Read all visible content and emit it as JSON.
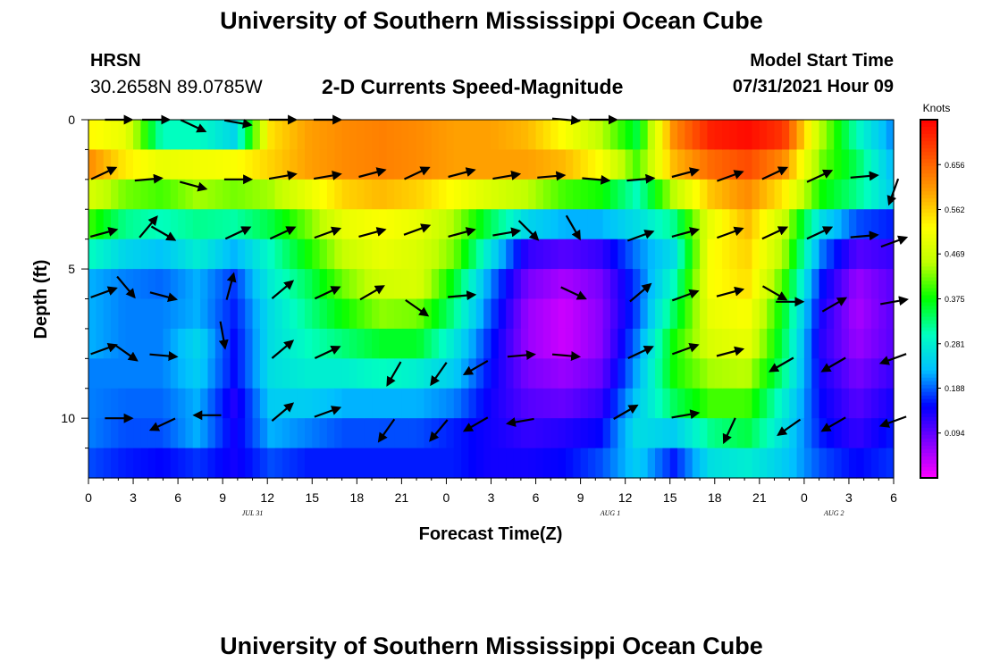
{
  "header": {
    "title_top": "University of Southern Mississippi Ocean Cube",
    "title_bottom": "University of Southern Mississippi Ocean Cube",
    "station_name": "HRSN",
    "station_coords": "30.2658N  89.0785W",
    "chart_title": "2-D Currents Speed-Magnitude",
    "model_start_label": "Model Start Time",
    "model_start_value": "07/31/2021 Hour 09"
  },
  "colors": {
    "background": "#ffffff",
    "text": "#000000",
    "arrow": "#000000"
  },
  "chart_data": {
    "type": "heatmap",
    "title": "2-D Currents Speed-Magnitude",
    "xlabel": "Forecast Time(Z)",
    "ylabel": "Depth (ft)",
    "x_ticks": [
      "0",
      "3",
      "6",
      "9",
      "12",
      "15",
      "18",
      "21",
      "0",
      "3",
      "6",
      "9",
      "12",
      "15",
      "18",
      "21",
      "0",
      "3",
      "6"
    ],
    "x_range_hours": [
      0,
      54
    ],
    "date_labels": [
      {
        "hour": 11,
        "text": "JUL 31"
      },
      {
        "hour": 35,
        "text": "AUG 1"
      },
      {
        "hour": 50,
        "text": "AUG 2"
      }
    ],
    "y_ticks": [
      "0",
      "5",
      "10"
    ],
    "y_tick_values": [
      0,
      5,
      10
    ],
    "y_range_ft": [
      0,
      12
    ],
    "colorbar": {
      "unit": "Knots",
      "range": [
        0,
        0.75
      ],
      "ticks": [
        "0.656",
        "0.562",
        "0.469",
        "0.375",
        "0.281",
        "0.188",
        "0.094"
      ],
      "tick_values": [
        0.656,
        0.562,
        0.469,
        0.375,
        0.281,
        0.188,
        0.094
      ],
      "stops": [
        "#ff00ff",
        "#8000ff",
        "#0000ff",
        "#00c0ff",
        "#00ffc0",
        "#00ff00",
        "#c0ff00",
        "#ffff00",
        "#ffa000",
        "#ff5000",
        "#ff0000"
      ]
    },
    "depth_rows": [
      0.5,
      1.5,
      2.5,
      3.5,
      4.5,
      5.5,
      6.5,
      7.5,
      8.5,
      9.5,
      10.5,
      11.5
    ],
    "speed_profiles": [
      [
        0.53,
        0.62,
        0.48,
        0.4,
        0.3,
        0.22,
        0.22,
        0.22,
        0.2,
        0.2,
        0.2,
        0.18
      ],
      [
        0.5,
        0.54,
        0.42,
        0.32,
        0.25,
        0.2,
        0.2,
        0.2,
        0.2,
        0.19,
        0.18,
        0.16
      ],
      [
        0.3,
        0.5,
        0.4,
        0.3,
        0.23,
        0.19,
        0.2,
        0.2,
        0.2,
        0.19,
        0.18,
        0.15
      ],
      [
        0.3,
        0.51,
        0.44,
        0.32,
        0.28,
        0.22,
        0.22,
        0.25,
        0.24,
        0.22,
        0.22,
        0.17
      ],
      [
        0.25,
        0.52,
        0.42,
        0.31,
        0.22,
        0.17,
        0.16,
        0.15,
        0.15,
        0.13,
        0.14,
        0.14
      ],
      [
        0.55,
        0.56,
        0.44,
        0.35,
        0.3,
        0.28,
        0.26,
        0.26,
        0.26,
        0.24,
        0.22,
        0.18
      ],
      [
        0.6,
        0.6,
        0.5,
        0.42,
        0.38,
        0.34,
        0.32,
        0.3,
        0.28,
        0.24,
        0.2,
        0.16
      ],
      [
        0.62,
        0.62,
        0.56,
        0.5,
        0.46,
        0.42,
        0.38,
        0.33,
        0.28,
        0.22,
        0.18,
        0.16
      ],
      [
        0.63,
        0.63,
        0.58,
        0.52,
        0.5,
        0.47,
        0.43,
        0.36,
        0.3,
        0.22,
        0.18,
        0.16
      ],
      [
        0.62,
        0.62,
        0.56,
        0.5,
        0.48,
        0.48,
        0.42,
        0.36,
        0.28,
        0.22,
        0.18,
        0.16
      ],
      [
        0.6,
        0.6,
        0.52,
        0.44,
        0.42,
        0.36,
        0.32,
        0.27,
        0.24,
        0.2,
        0.16,
        0.16
      ],
      [
        0.6,
        0.6,
        0.48,
        0.34,
        0.26,
        0.2,
        0.18,
        0.16,
        0.15,
        0.14,
        0.14,
        0.14
      ],
      [
        0.58,
        0.6,
        0.45,
        0.25,
        0.12,
        0.08,
        0.06,
        0.06,
        0.08,
        0.1,
        0.12,
        0.14
      ],
      [
        0.52,
        0.58,
        0.4,
        0.22,
        0.1,
        0.05,
        0.03,
        0.03,
        0.06,
        0.09,
        0.13,
        0.15
      ],
      [
        0.45,
        0.52,
        0.38,
        0.22,
        0.12,
        0.08,
        0.07,
        0.07,
        0.09,
        0.12,
        0.15,
        0.18
      ],
      [
        0.35,
        0.4,
        0.3,
        0.26,
        0.2,
        0.18,
        0.18,
        0.2,
        0.22,
        0.24,
        0.26,
        0.24
      ],
      [
        0.62,
        0.58,
        0.45,
        0.32,
        0.26,
        0.3,
        0.34,
        0.38,
        0.38,
        0.34,
        0.24,
        0.16
      ],
      [
        0.72,
        0.65,
        0.57,
        0.5,
        0.52,
        0.52,
        0.5,
        0.48,
        0.44,
        0.4,
        0.32,
        0.26
      ],
      [
        0.74,
        0.68,
        0.62,
        0.58,
        0.56,
        0.55,
        0.52,
        0.5,
        0.45,
        0.4,
        0.35,
        0.28
      ],
      [
        0.7,
        0.62,
        0.54,
        0.46,
        0.44,
        0.4,
        0.36,
        0.34,
        0.32,
        0.28,
        0.26,
        0.24
      ],
      [
        0.45,
        0.42,
        0.38,
        0.26,
        0.2,
        0.16,
        0.14,
        0.13,
        0.14,
        0.15,
        0.16,
        0.18
      ],
      [
        0.3,
        0.34,
        0.32,
        0.18,
        0.1,
        0.06,
        0.05,
        0.06,
        0.08,
        0.1,
        0.12,
        0.15
      ],
      [
        0.2,
        0.22,
        0.24,
        0.16,
        0.12,
        0.1,
        0.1,
        0.1,
        0.12,
        0.14,
        0.16,
        0.17
      ]
    ],
    "arrows": [
      {
        "hour": 2.0,
        "depth": 0.0,
        "angle": 0
      },
      {
        "hour": 4.5,
        "depth": 0.0,
        "angle": 0
      },
      {
        "hour": 7.0,
        "depth": 0.2,
        "angle": 25
      },
      {
        "hour": 10.0,
        "depth": 0.1,
        "angle": 10
      },
      {
        "hour": 13.0,
        "depth": 0.0,
        "angle": 0
      },
      {
        "hour": 16.0,
        "depth": 0.0,
        "angle": 0
      },
      {
        "hour": 32.0,
        "depth": 0.0,
        "angle": 5
      },
      {
        "hour": 34.5,
        "depth": 0.0,
        "angle": 0
      },
      {
        "hour": 1.0,
        "depth": 1.8,
        "angle": -25
      },
      {
        "hour": 4.0,
        "depth": 2.0,
        "angle": -5
      },
      {
        "hour": 7.0,
        "depth": 2.2,
        "angle": 15
      },
      {
        "hour": 10.0,
        "depth": 2.0,
        "angle": 0
      },
      {
        "hour": 13.0,
        "depth": 1.9,
        "angle": -10
      },
      {
        "hour": 16.0,
        "depth": 1.9,
        "angle": -10
      },
      {
        "hour": 19.0,
        "depth": 1.8,
        "angle": -15
      },
      {
        "hour": 22.0,
        "depth": 1.8,
        "angle": -25
      },
      {
        "hour": 25.0,
        "depth": 1.8,
        "angle": -15
      },
      {
        "hour": 28.0,
        "depth": 1.9,
        "angle": -10
      },
      {
        "hour": 31.0,
        "depth": 1.9,
        "angle": -5
      },
      {
        "hour": 34.0,
        "depth": 2.0,
        "angle": 5
      },
      {
        "hour": 37.0,
        "depth": 2.0,
        "angle": -5
      },
      {
        "hour": 40.0,
        "depth": 1.8,
        "angle": -15
      },
      {
        "hour": 43.0,
        "depth": 1.9,
        "angle": -20
      },
      {
        "hour": 46.0,
        "depth": 1.8,
        "angle": -25
      },
      {
        "hour": 49.0,
        "depth": 1.9,
        "angle": -25
      },
      {
        "hour": 52.0,
        "depth": 1.9,
        "angle": -5
      },
      {
        "hour": 54.0,
        "depth": 2.4,
        "angle": 110
      },
      {
        "hour": 1.0,
        "depth": 3.8,
        "angle": -15
      },
      {
        "hour": 4.0,
        "depth": 3.6,
        "angle": -50
      },
      {
        "hour": 5.0,
        "depth": 3.8,
        "angle": 30
      },
      {
        "hour": 10.0,
        "depth": 3.8,
        "angle": -25
      },
      {
        "hour": 13.0,
        "depth": 3.8,
        "angle": -25
      },
      {
        "hour": 16.0,
        "depth": 3.8,
        "angle": -20
      },
      {
        "hour": 19.0,
        "depth": 3.8,
        "angle": -15
      },
      {
        "hour": 22.0,
        "depth": 3.7,
        "angle": -20
      },
      {
        "hour": 25.0,
        "depth": 3.8,
        "angle": -15
      },
      {
        "hour": 28.0,
        "depth": 3.8,
        "angle": -10
      },
      {
        "hour": 29.5,
        "depth": 3.7,
        "angle": 45
      },
      {
        "hour": 32.5,
        "depth": 3.6,
        "angle": 60
      },
      {
        "hour": 37.0,
        "depth": 3.9,
        "angle": -20
      },
      {
        "hour": 40.0,
        "depth": 3.8,
        "angle": -15
      },
      {
        "hour": 43.0,
        "depth": 3.8,
        "angle": -20
      },
      {
        "hour": 46.0,
        "depth": 3.8,
        "angle": -25
      },
      {
        "hour": 49.0,
        "depth": 3.8,
        "angle": -25
      },
      {
        "hour": 52.0,
        "depth": 3.9,
        "angle": -5
      },
      {
        "hour": 54.0,
        "depth": 4.1,
        "angle": -20
      },
      {
        "hour": 1.0,
        "depth": 5.8,
        "angle": -20
      },
      {
        "hour": 2.5,
        "depth": 5.6,
        "angle": 50
      },
      {
        "hour": 5.0,
        "depth": 5.9,
        "angle": 15
      },
      {
        "hour": 9.5,
        "depth": 5.6,
        "angle": -75
      },
      {
        "hour": 13.0,
        "depth": 5.7,
        "angle": -40
      },
      {
        "hour": 16.0,
        "depth": 5.8,
        "angle": -25
      },
      {
        "hour": 19.0,
        "depth": 5.8,
        "angle": -30
      },
      {
        "hour": 22.0,
        "depth": 6.3,
        "angle": 35
      },
      {
        "hour": 25.0,
        "depth": 5.9,
        "angle": -5
      },
      {
        "hour": 32.5,
        "depth": 5.8,
        "angle": 25
      },
      {
        "hour": 37.0,
        "depth": 5.8,
        "angle": -40
      },
      {
        "hour": 40.0,
        "depth": 5.9,
        "angle": -20
      },
      {
        "hour": 43.0,
        "depth": 5.8,
        "angle": -15
      },
      {
        "hour": 46.0,
        "depth": 5.8,
        "angle": 30
      },
      {
        "hour": 47.0,
        "depth": 6.1,
        "angle": 0
      },
      {
        "hour": 50.0,
        "depth": 6.2,
        "angle": -30
      },
      {
        "hour": 54.0,
        "depth": 6.1,
        "angle": -10
      },
      {
        "hour": 1.0,
        "depth": 7.7,
        "angle": -20
      },
      {
        "hour": 2.5,
        "depth": 7.8,
        "angle": 35
      },
      {
        "hour": 5.0,
        "depth": 7.9,
        "angle": 5
      },
      {
        "hour": 9.0,
        "depth": 7.2,
        "angle": 80
      },
      {
        "hour": 13.0,
        "depth": 7.7,
        "angle": -40
      },
      {
        "hour": 16.0,
        "depth": 7.8,
        "angle": -25
      },
      {
        "hour": 20.5,
        "depth": 8.5,
        "angle": 120
      },
      {
        "hour": 23.5,
        "depth": 8.5,
        "angle": 125
      },
      {
        "hour": 26.0,
        "depth": 8.3,
        "angle": 150
      },
      {
        "hour": 29.0,
        "depth": 7.9,
        "angle": -5
      },
      {
        "hour": 32.0,
        "depth": 7.9,
        "angle": 5
      },
      {
        "hour": 37.0,
        "depth": 7.8,
        "angle": -25
      },
      {
        "hour": 40.0,
        "depth": 7.7,
        "angle": -20
      },
      {
        "hour": 43.0,
        "depth": 7.8,
        "angle": -15
      },
      {
        "hour": 46.5,
        "depth": 8.2,
        "angle": 150
      },
      {
        "hour": 50.0,
        "depth": 8.2,
        "angle": 150
      },
      {
        "hour": 54.0,
        "depth": 8.0,
        "angle": 160
      },
      {
        "hour": 2.0,
        "depth": 10.0,
        "angle": 0
      },
      {
        "hour": 5.0,
        "depth": 10.2,
        "angle": 155
      },
      {
        "hour": 8.0,
        "depth": 9.9,
        "angle": 180
      },
      {
        "hour": 13.0,
        "depth": 9.8,
        "angle": -40
      },
      {
        "hour": 16.0,
        "depth": 9.8,
        "angle": -20
      },
      {
        "hour": 20.0,
        "depth": 10.4,
        "angle": 125
      },
      {
        "hour": 23.5,
        "depth": 10.4,
        "angle": 130
      },
      {
        "hour": 26.0,
        "depth": 10.2,
        "angle": 150
      },
      {
        "hour": 29.0,
        "depth": 10.1,
        "angle": 170
      },
      {
        "hour": 36.0,
        "depth": 9.8,
        "angle": -30
      },
      {
        "hour": 40.0,
        "depth": 9.9,
        "angle": -10
      },
      {
        "hour": 43.0,
        "depth": 10.4,
        "angle": 115
      },
      {
        "hour": 47.0,
        "depth": 10.3,
        "angle": 145
      },
      {
        "hour": 50.0,
        "depth": 10.2,
        "angle": 150
      },
      {
        "hour": 54.0,
        "depth": 10.1,
        "angle": 160
      }
    ]
  }
}
